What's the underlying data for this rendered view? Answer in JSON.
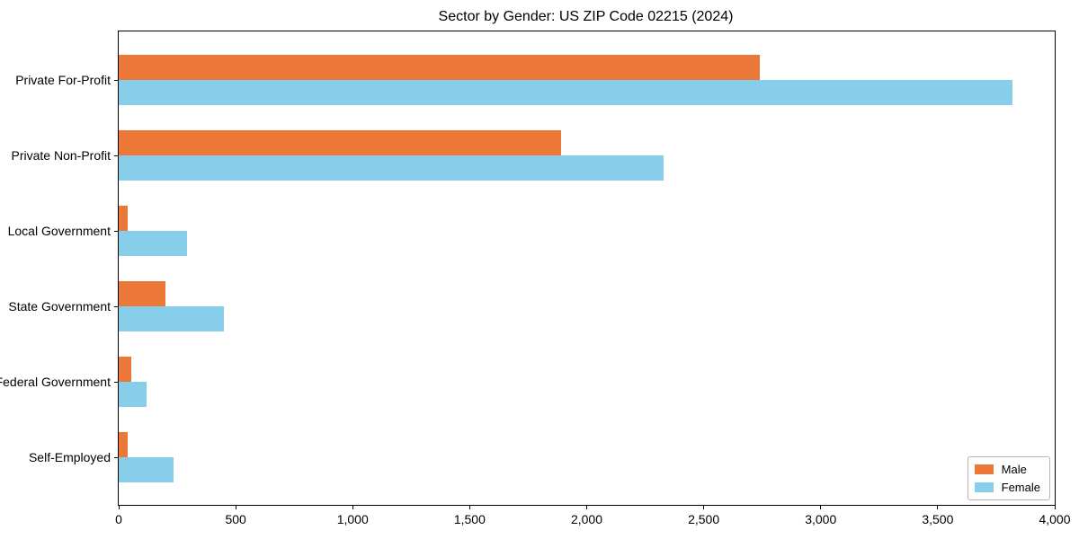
{
  "chart_data": {
    "type": "bar",
    "orientation": "horizontal",
    "title": "Sector by Gender: US ZIP Code 02215 (2024)",
    "categories": [
      "Private For-Profit",
      "Private Non-Profit",
      "Local Government",
      "State Government",
      "Federal Government",
      "Self-Employed"
    ],
    "series": [
      {
        "name": "Male",
        "color": "#EB7839",
        "values": [
          2740,
          1890,
          40,
          200,
          55,
          40
        ]
      },
      {
        "name": "Female",
        "color": "#87CEEB",
        "values": [
          3820,
          2330,
          290,
          450,
          120,
          235
        ]
      }
    ],
    "xlabel": "",
    "ylabel": "",
    "xlim": [
      0,
      4000
    ],
    "grid": false,
    "legend_position": "lower right"
  },
  "x_axis": {
    "tick_values": [
      0,
      500,
      1000,
      1500,
      2000,
      2500,
      3000,
      3500,
      4000
    ],
    "tick_labels": [
      "0",
      "500",
      "1,000",
      "1,500",
      "2,000",
      "2,500",
      "3,000",
      "3,500",
      "4,000"
    ]
  },
  "colors": {
    "male": "#EB7839",
    "female": "#87CEEB",
    "axis": "#000000",
    "background": "#FFFFFF",
    "legend_border": "#B5B5B5"
  }
}
